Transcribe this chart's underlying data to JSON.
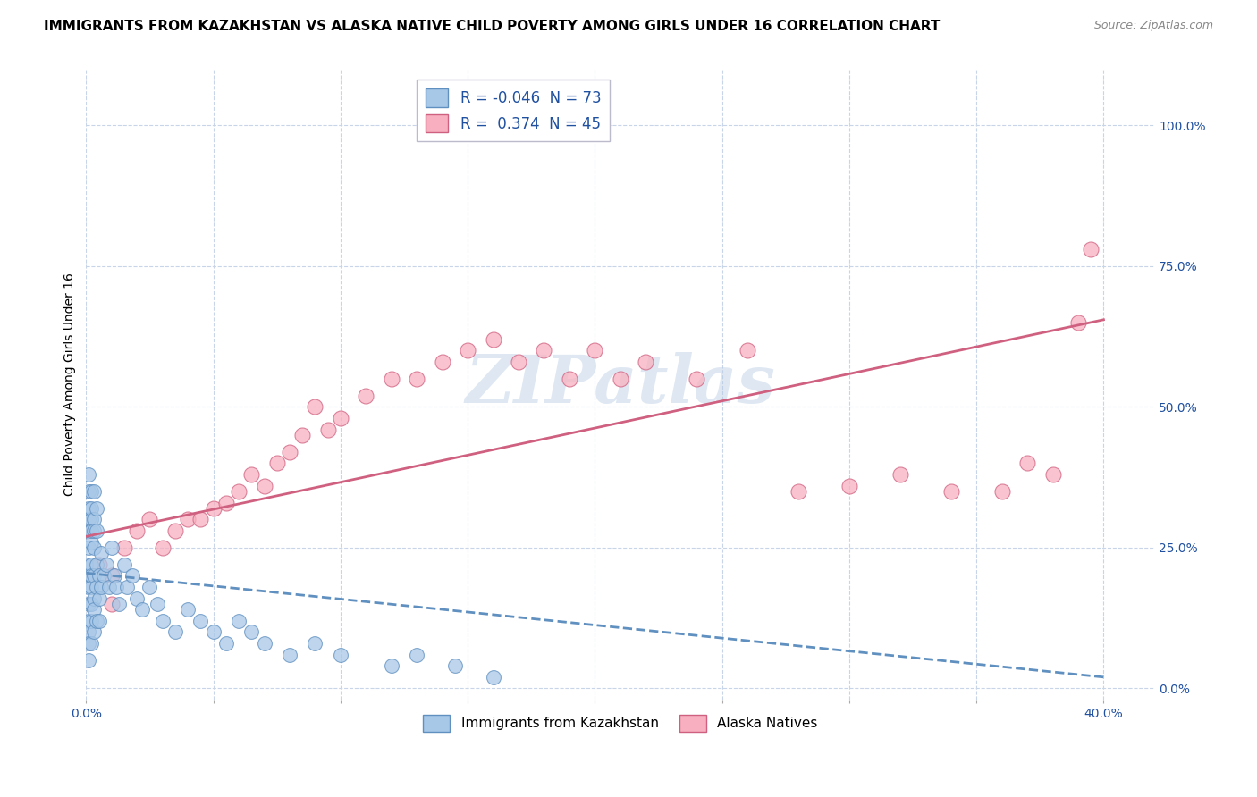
{
  "title": "IMMIGRANTS FROM KAZAKHSTAN VS ALASKA NATIVE CHILD POVERTY AMONG GIRLS UNDER 16 CORRELATION CHART",
  "source": "Source: ZipAtlas.com",
  "ylabel": "Child Poverty Among Girls Under 16",
  "xlim": [
    0.0,
    0.42
  ],
  "ylim": [
    -0.02,
    1.1
  ],
  "xticks": [
    0.0,
    0.05,
    0.1,
    0.15,
    0.2,
    0.25,
    0.3,
    0.35,
    0.4
  ],
  "xtick_labels": [
    "0.0%",
    "",
    "",
    "",
    "",
    "",
    "",
    "",
    "40.0%"
  ],
  "ytick_labels_right": [
    "0.0%",
    "25.0%",
    "50.0%",
    "75.0%",
    "100.0%"
  ],
  "yticks_right": [
    0.0,
    0.25,
    0.5,
    0.75,
    1.0
  ],
  "watermark": "ZIPatlas",
  "legend1_label": "R = -0.046  N = 73",
  "legend2_label": "R =  0.374  N = 45",
  "blue_color": "#a8c8e8",
  "pink_color": "#f8b0c0",
  "blue_edge_color": "#6090c0",
  "pink_edge_color": "#d06080",
  "blue_line_color": "#6090c0",
  "pink_line_color": "#d06080",
  "background_color": "#ffffff",
  "grid_color": "#c8d4e8",
  "blue_scatter_x": [
    0.0,
    0.0,
    0.001,
    0.001,
    0.001,
    0.001,
    0.001,
    0.001,
    0.001,
    0.001,
    0.001,
    0.001,
    0.001,
    0.001,
    0.002,
    0.002,
    0.002,
    0.002,
    0.002,
    0.002,
    0.002,
    0.002,
    0.002,
    0.002,
    0.002,
    0.003,
    0.003,
    0.003,
    0.003,
    0.003,
    0.003,
    0.003,
    0.003,
    0.004,
    0.004,
    0.004,
    0.004,
    0.004,
    0.005,
    0.005,
    0.005,
    0.006,
    0.006,
    0.007,
    0.008,
    0.009,
    0.01,
    0.011,
    0.012,
    0.013,
    0.015,
    0.016,
    0.018,
    0.02,
    0.022,
    0.025,
    0.028,
    0.03,
    0.035,
    0.04,
    0.045,
    0.05,
    0.055,
    0.06,
    0.065,
    0.07,
    0.08,
    0.09,
    0.1,
    0.12,
    0.13,
    0.145,
    0.16
  ],
  "blue_scatter_y": [
    0.2,
    0.22,
    0.25,
    0.28,
    0.3,
    0.18,
    0.15,
    0.32,
    0.35,
    0.12,
    0.1,
    0.08,
    0.38,
    0.05,
    0.22,
    0.26,
    0.3,
    0.18,
    0.15,
    0.35,
    0.12,
    0.08,
    0.32,
    0.28,
    0.2,
    0.25,
    0.2,
    0.16,
    0.3,
    0.14,
    0.1,
    0.35,
    0.28,
    0.22,
    0.18,
    0.12,
    0.28,
    0.32,
    0.2,
    0.16,
    0.12,
    0.24,
    0.18,
    0.2,
    0.22,
    0.18,
    0.25,
    0.2,
    0.18,
    0.15,
    0.22,
    0.18,
    0.2,
    0.16,
    0.14,
    0.18,
    0.15,
    0.12,
    0.1,
    0.14,
    0.12,
    0.1,
    0.08,
    0.12,
    0.1,
    0.08,
    0.06,
    0.08,
    0.06,
    0.04,
    0.06,
    0.04,
    0.02
  ],
  "pink_scatter_x": [
    0.0,
    0.005,
    0.01,
    0.015,
    0.02,
    0.025,
    0.03,
    0.035,
    0.04,
    0.045,
    0.05,
    0.055,
    0.06,
    0.065,
    0.07,
    0.075,
    0.08,
    0.085,
    0.09,
    0.095,
    0.1,
    0.11,
    0.12,
    0.13,
    0.14,
    0.15,
    0.16,
    0.17,
    0.18,
    0.19,
    0.2,
    0.21,
    0.22,
    0.24,
    0.26,
    0.28,
    0.3,
    0.32,
    0.34,
    0.36,
    0.37,
    0.38,
    0.39,
    0.395,
    0.01
  ],
  "pink_scatter_y": [
    0.28,
    0.22,
    0.2,
    0.25,
    0.28,
    0.3,
    0.25,
    0.28,
    0.3,
    0.3,
    0.32,
    0.33,
    0.35,
    0.38,
    0.36,
    0.4,
    0.42,
    0.45,
    0.5,
    0.46,
    0.48,
    0.52,
    0.55,
    0.55,
    0.58,
    0.6,
    0.62,
    0.58,
    0.6,
    0.55,
    0.6,
    0.55,
    0.58,
    0.55,
    0.6,
    0.35,
    0.36,
    0.38,
    0.35,
    0.35,
    0.4,
    0.38,
    0.65,
    0.78,
    0.15
  ],
  "blue_trend_x0": 0.0,
  "blue_trend_y0": 0.205,
  "blue_trend_x1": 0.4,
  "blue_trend_y1": 0.02,
  "pink_trend_x0": 0.0,
  "pink_trend_y0": 0.27,
  "pink_trend_x1": 0.4,
  "pink_trend_y1": 0.655,
  "title_fontsize": 11,
  "axis_label_fontsize": 10,
  "tick_fontsize": 10
}
